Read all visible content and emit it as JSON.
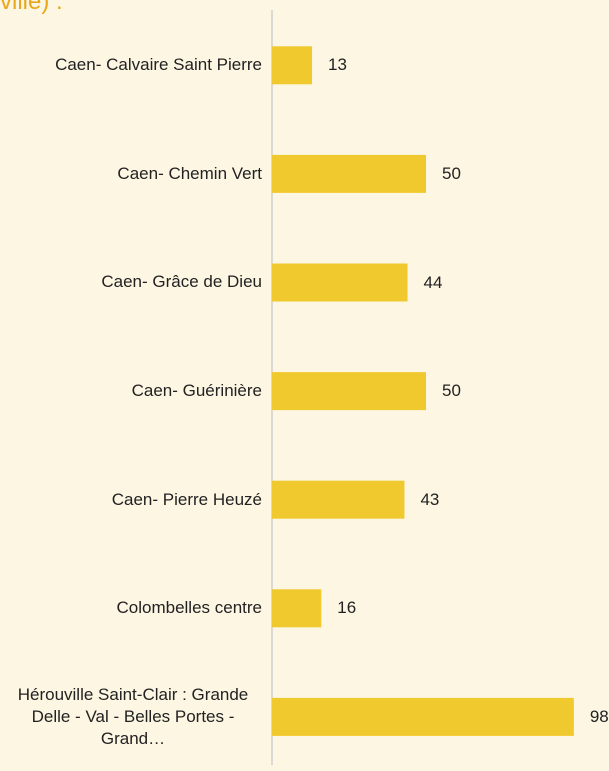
{
  "chart_data": {
    "type": "bar",
    "orientation": "horizontal",
    "title": "ville) :",
    "categories": [
      "Caen- Calvaire Saint Pierre",
      "Caen- Chemin Vert",
      "Caen- Grâce de Dieu",
      "Caen- Guérinière",
      "Caen- Pierre Heuzé",
      "Colombelles centre",
      "Hérouville Saint-Clair : Grande Delle - Val - Belles Portes - Grand…"
    ],
    "values": [
      13,
      50,
      44,
      50,
      43,
      16,
      98
    ],
    "color": "#f0c92e"
  }
}
